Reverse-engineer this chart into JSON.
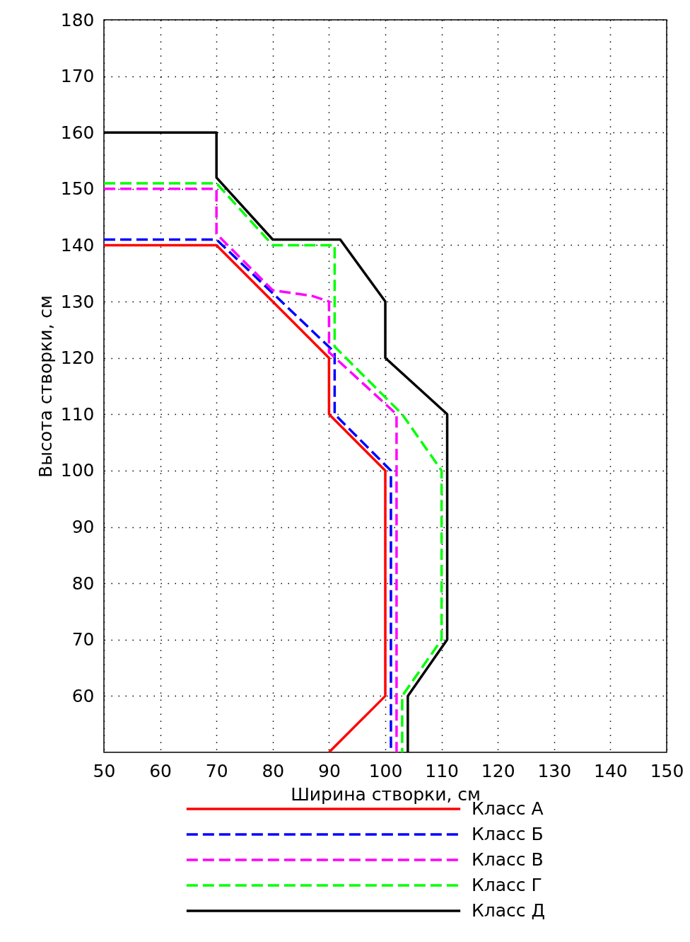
{
  "chart_data": {
    "type": "line",
    "xlabel": "Ширина створки, см",
    "ylabel": "Высота створки, см",
    "xlim": [
      50,
      150
    ],
    "ylim": [
      50,
      180
    ],
    "xticks": [
      50,
      60,
      70,
      80,
      90,
      100,
      110,
      120,
      130,
      140,
      150
    ],
    "yticks": [
      60,
      70,
      80,
      90,
      100,
      110,
      120,
      130,
      140,
      150,
      160,
      170,
      180
    ],
    "grid": true,
    "legend": "bottom",
    "marker": "none",
    "series": [
      {
        "name": "Класс А",
        "color": "#ff0000",
        "line_style": "solid",
        "x": [
          50,
          70,
          90,
          90,
          100,
          100,
          90
        ],
        "values": [
          140,
          140,
          120,
          110,
          100,
          60,
          50
        ]
      },
      {
        "name": "Класс Б",
        "color": "#0000ff",
        "line_style": "dashed",
        "x": [
          50,
          70,
          91,
          91,
          101,
          101
        ],
        "values": [
          141,
          141,
          121,
          110,
          100,
          50
        ]
      },
      {
        "name": "Класс В",
        "color": "#ff00ff",
        "line_style": "dashed",
        "x": [
          50,
          70,
          70,
          80,
          87,
          90,
          90,
          102,
          102
        ],
        "values": [
          150,
          150,
          142,
          132,
          131,
          130,
          121,
          110,
          50
        ]
      },
      {
        "name": "Класс Г",
        "color": "#00ff00",
        "line_style": "dashed",
        "x": [
          50,
          70,
          80,
          91,
          91,
          103,
          110,
          110,
          103,
          103
        ],
        "values": [
          151,
          151,
          140,
          140,
          122,
          110,
          100,
          70,
          60,
          50
        ]
      },
      {
        "name": "Класс Д",
        "color": "#000000",
        "line_style": "solid",
        "x": [
          50,
          70,
          70,
          80,
          92,
          100,
          100,
          111,
          111,
          104,
          104
        ],
        "values": [
          160,
          160,
          152,
          141,
          141,
          130,
          120,
          110,
          70,
          60,
          50
        ]
      }
    ]
  }
}
